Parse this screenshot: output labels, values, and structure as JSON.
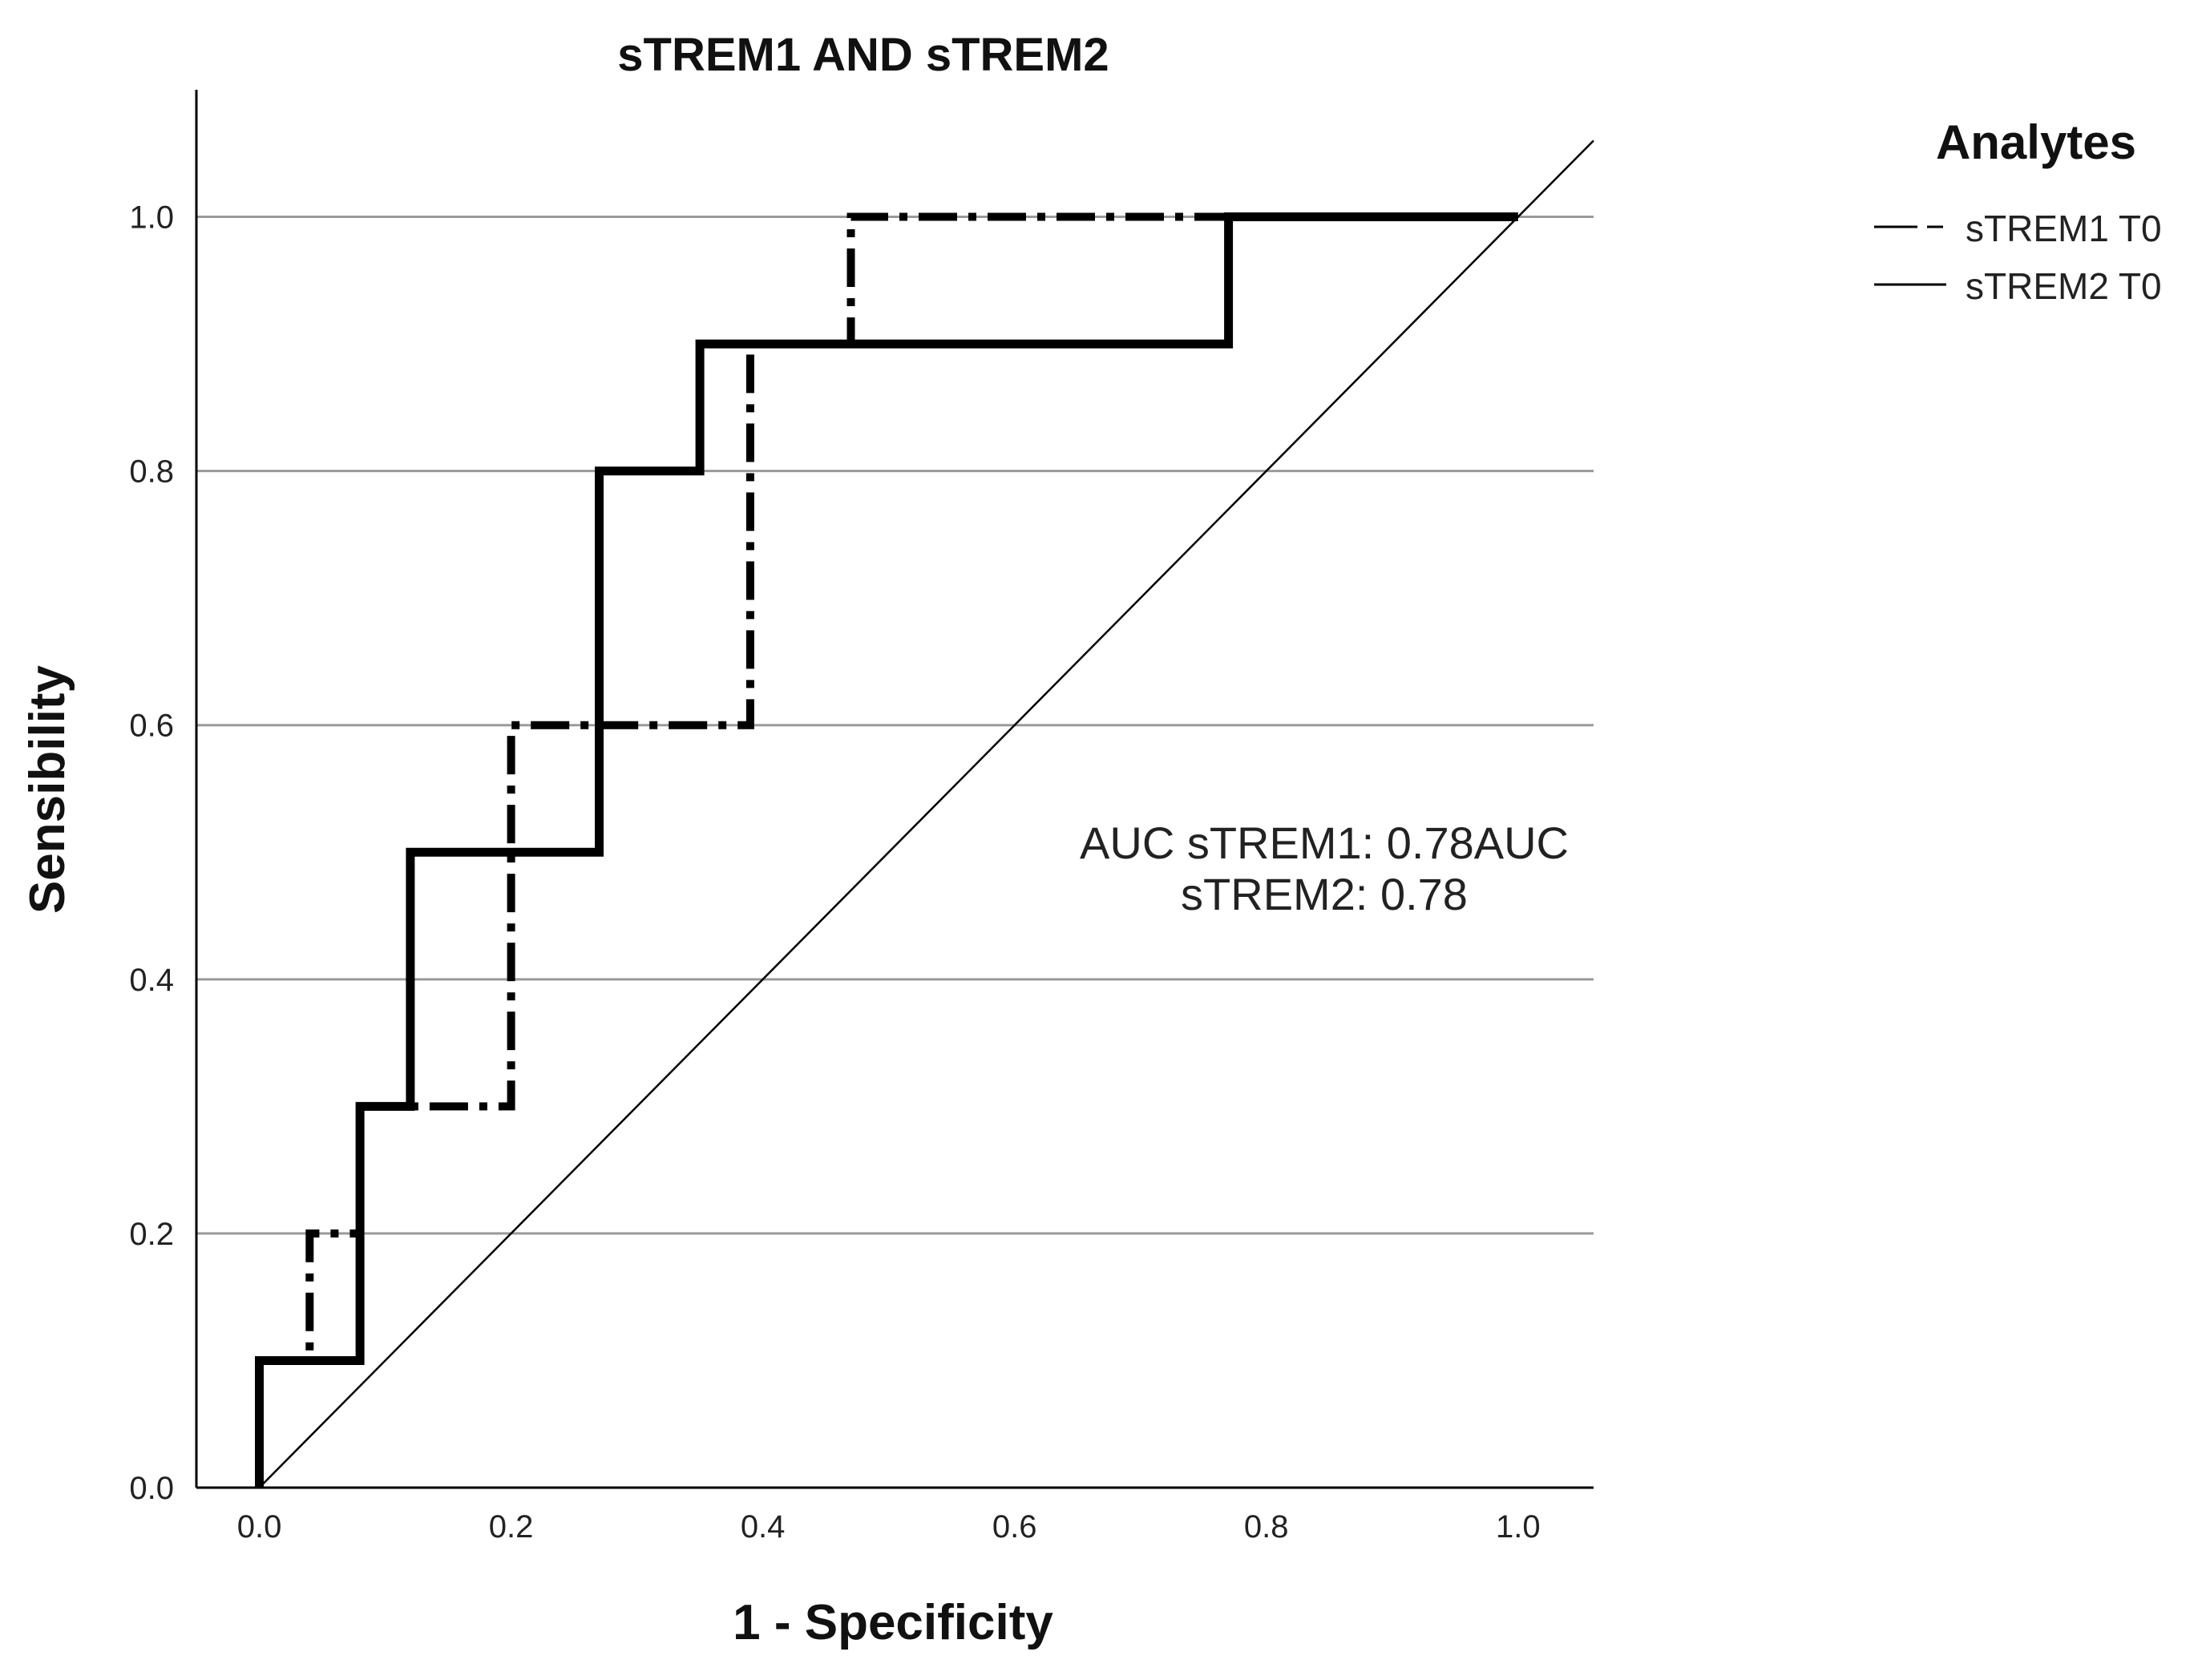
{
  "chart_data": {
    "type": "line",
    "title": "sTREM1 AND sTREM2",
    "xlabel": "1 - Specificity",
    "ylabel": "Sensibility",
    "xlim": [
      -0.05,
      1.06
    ],
    "ylim": [
      0.0,
      1.1
    ],
    "x_ticks": [
      "0.0",
      "0.2",
      "0.4",
      "0.6",
      "0.8",
      "1.0"
    ],
    "y_ticks": [
      "0.0",
      "0.2",
      "0.4",
      "0.6",
      "0.8",
      "1.0"
    ],
    "y_grid": true,
    "legend": {
      "title": "Analytes",
      "placement": "right"
    },
    "annotation": [
      "AUC sTREM1: 0.78AUC",
      "sTREM2: 0.78"
    ],
    "reference_line": {
      "x": [
        0,
        1.06
      ],
      "y": [
        0,
        1.06
      ]
    },
    "series": [
      {
        "name": "sTREM1 T0",
        "style": "dash-dot",
        "x": [
          0.0,
          0.0,
          0.04,
          0.04,
          0.08,
          0.08,
          0.2,
          0.2,
          0.39,
          0.39,
          0.47,
          0.47,
          1.0
        ],
        "y": [
          0.0,
          0.1,
          0.1,
          0.2,
          0.2,
          0.3,
          0.3,
          0.6,
          0.6,
          0.9,
          0.9,
          1.0,
          1.0
        ]
      },
      {
        "name": "sTREM2 T0",
        "style": "solid",
        "x": [
          0.0,
          0.0,
          0.08,
          0.08,
          0.12,
          0.12,
          0.27,
          0.27,
          0.35,
          0.35,
          0.77,
          0.77,
          1.0
        ],
        "y": [
          0.0,
          0.1,
          0.1,
          0.3,
          0.3,
          0.5,
          0.5,
          0.8,
          0.8,
          0.9,
          0.9,
          1.0,
          1.0
        ]
      }
    ],
    "colors": {
      "line": "#000000",
      "grid": "#9a9a9a",
      "axis": "#000000"
    }
  }
}
